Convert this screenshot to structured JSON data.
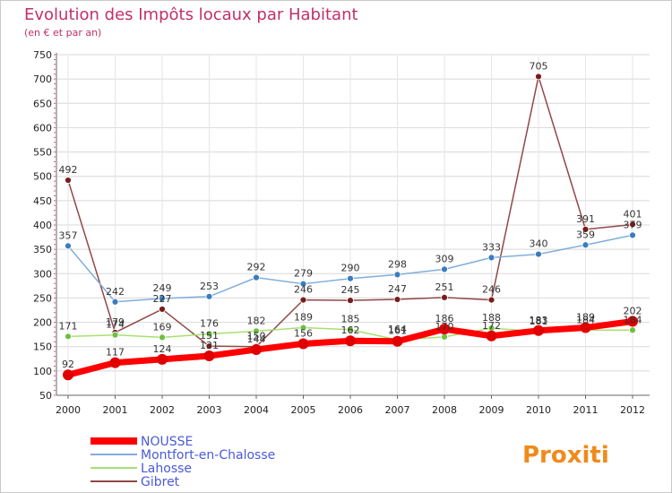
{
  "chart_data": {
    "type": "line",
    "title": "Evolution des Impôts locaux par Habitant",
    "subtitle": "(en € et par an)",
    "xlabel": "",
    "ylabel": "",
    "ylim": [
      50,
      750
    ],
    "yticks": [
      50,
      100,
      150,
      200,
      250,
      300,
      350,
      400,
      450,
      500,
      550,
      600,
      650,
      700,
      750
    ],
    "categories": [
      "2000",
      "2001",
      "2002",
      "2003",
      "2004",
      "2005",
      "2006",
      "2007",
      "2008",
      "2009",
      "2010",
      "2011",
      "2012"
    ],
    "series": [
      {
        "name": "NOUSSE",
        "color": "#ff0000",
        "marker": "#e00000",
        "values": [
          92,
          117,
          124,
          131,
          144,
          156,
          162,
          161,
          186,
          172,
          183,
          189,
          202
        ]
      },
      {
        "name": "Montfort-en-Chalosse",
        "color": "#80aedd",
        "marker": "#3a7cc0",
        "values": [
          357,
          242,
          249,
          253,
          292,
          279,
          290,
          298,
          309,
          333,
          340,
          359,
          379
        ]
      },
      {
        "name": "Lahosse",
        "color": "#a8e070",
        "marker": "#6cc040",
        "values": [
          171,
          174,
          169,
          176,
          182,
          189,
          185,
          164,
          170,
          188,
          181,
          184,
          184
        ]
      },
      {
        "name": "Gibret",
        "color": "#904848",
        "marker": "#7a1c1c",
        "values": [
          492,
          179,
          227,
          151,
          150,
          246,
          245,
          247,
          251,
          246,
          705,
          391,
          401
        ]
      }
    ],
    "legend_position": "bottom-left",
    "grid": true
  },
  "logo_text": "Proxiti"
}
